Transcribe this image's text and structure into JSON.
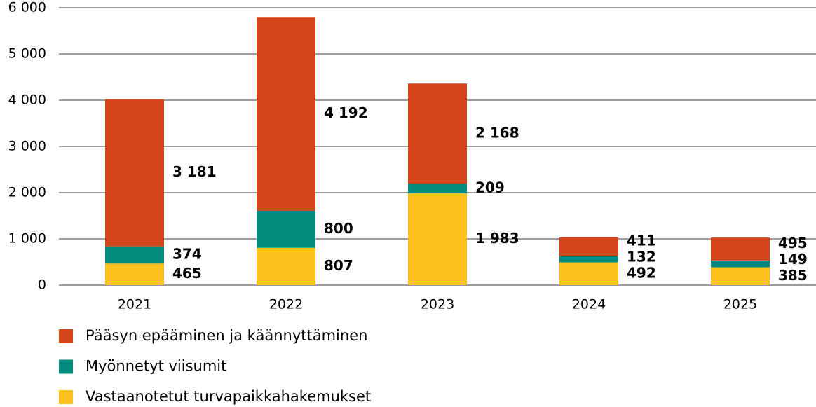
{
  "chart_data": {
    "type": "stacked_bar",
    "categories": [
      "2021",
      "2022",
      "2023",
      "2024",
      "2025"
    ],
    "series": [
      {
        "name": "Vastaanotetut turvapaikkahakemukset",
        "color": "#fcc21d",
        "values": [
          465,
          807,
          1983,
          492,
          385
        ],
        "value_labels": [
          "465",
          "807",
          "1 983",
          "492",
          "385"
        ]
      },
      {
        "name": "Myönnetyt viisumit",
        "color": "#028a7d",
        "values": [
          374,
          800,
          209,
          132,
          149
        ],
        "value_labels": [
          "374",
          "800",
          "209",
          "132",
          "149"
        ]
      },
      {
        "name": "Pääsyn epääminen ja käännyttäminen",
        "color": "#d3451b",
        "values": [
          3181,
          4192,
          2168,
          411,
          495
        ],
        "value_labels": [
          "3 181",
          "4 192",
          "2 168",
          "411",
          "495"
        ]
      }
    ],
    "ylim": [
      0,
      6000
    ],
    "yticks": [
      0,
      {
        "value": 1000,
        "label": "1 000"
      },
      {
        "value": 2000,
        "label": "2 000"
      },
      {
        "value": 3000,
        "label": "3 000"
      },
      {
        "value": 4000,
        "label": "4 000"
      },
      {
        "value": 5000,
        "label": "5 000"
      },
      {
        "value": 6000,
        "label": "6 000"
      }
    ],
    "grid": true,
    "legend": "bottom"
  }
}
